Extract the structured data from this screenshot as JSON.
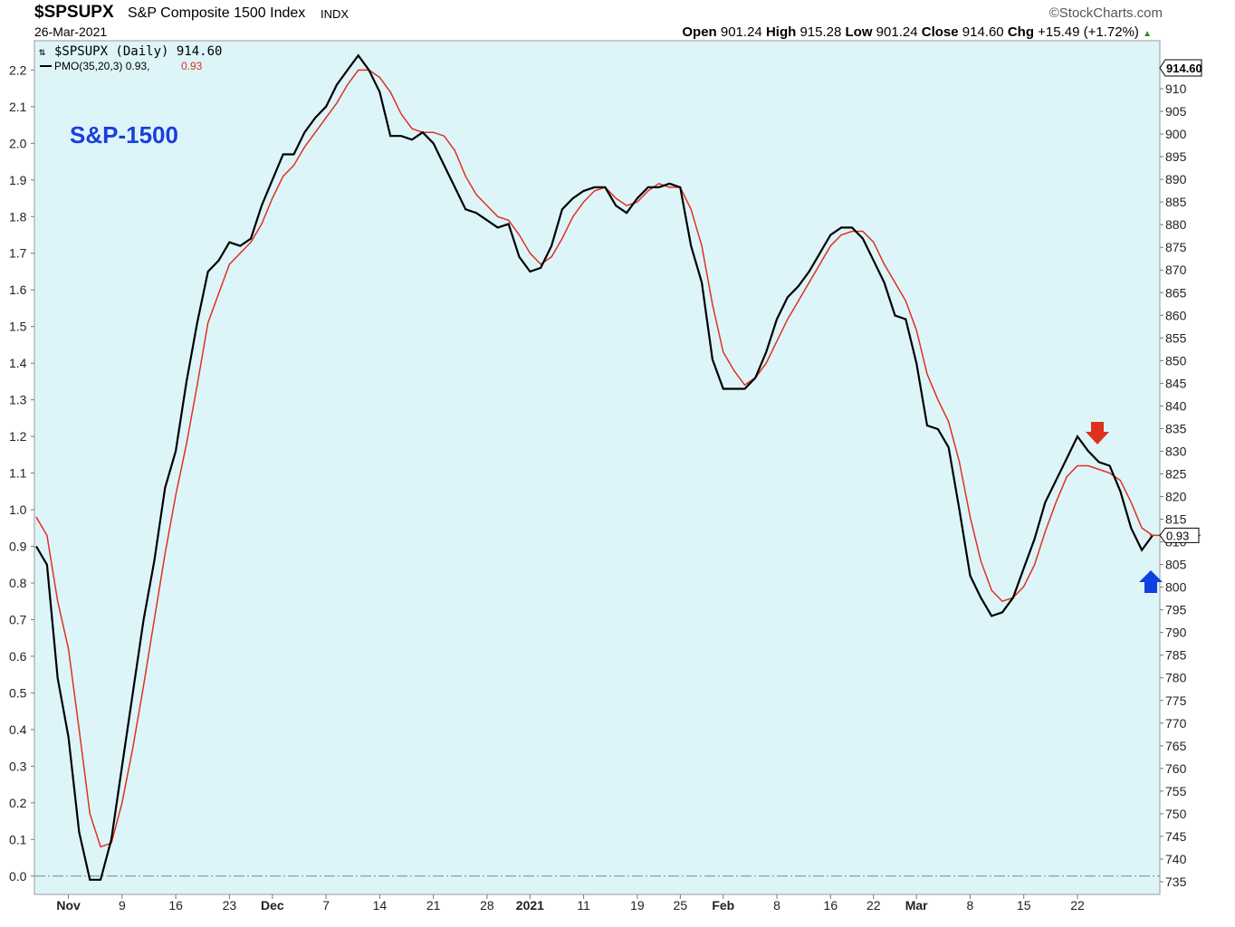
{
  "header": {
    "symbol": "$SPSUPX",
    "description": "S&P Composite 1500 Index",
    "exchange": "INDX",
    "date": "26-Mar-2021",
    "brand": "©StockCharts.com",
    "open_label": "Open",
    "open": "901.24",
    "high_label": "High",
    "high": "915.28",
    "low_label": "Low",
    "low": "901.24",
    "close_label": "Close",
    "close": "914.60",
    "chg_label": "Chg",
    "chg": "+15.49 (+1.72%)"
  },
  "legend": {
    "price": "$SPSUPX (Daily) 914.60",
    "pmo": "PMO(35,20,3) 0.93,",
    "signal": "0.93"
  },
  "annotation": "S&P-1500",
  "colors": {
    "background": "#ddf5f8",
    "pmo": "#000000",
    "signal": "#e03020",
    "annotation": "#1a3ee0",
    "down_arrow": "#e03020",
    "up_arrow": "#1040e0"
  },
  "chart_data": {
    "type": "line",
    "title": "",
    "x_tick_labels": [
      "Nov",
      "9",
      "16",
      "23",
      "Dec",
      "7",
      "14",
      "21",
      "28",
      "2021",
      "11",
      "19",
      "25",
      "Feb",
      "8",
      "16",
      "22",
      "Mar",
      "8",
      "15",
      "22"
    ],
    "left_axis": {
      "ticks": [
        "0.0",
        "0.1",
        "0.2",
        "0.3",
        "0.4",
        "0.5",
        "0.6",
        "0.7",
        "0.8",
        "0.9",
        "1.0",
        "1.1",
        "1.2",
        "1.3",
        "1.4",
        "1.5",
        "1.6",
        "1.7",
        "1.8",
        "1.9",
        "2.0",
        "2.1",
        "2.2"
      ],
      "ylim": [
        -0.05,
        2.28
      ]
    },
    "right_axis": {
      "ticks": [
        "735",
        "740",
        "745",
        "750",
        "755",
        "760",
        "765",
        "770",
        "775",
        "780",
        "785",
        "790",
        "795",
        "800",
        "805",
        "810",
        "815",
        "820",
        "825",
        "830",
        "835",
        "840",
        "845",
        "850",
        "855",
        "860",
        "865",
        "870",
        "875",
        "880",
        "885",
        "890",
        "895",
        "900",
        "905",
        "910"
      ],
      "last_value_label": "914.60",
      "last_value": 914.6
    },
    "pmo_value_label": "0.93",
    "zero_line": 0,
    "series": [
      {
        "name": "PMO(35,20,3)",
        "values": [
          0.9,
          0.85,
          0.54,
          0.38,
          0.12,
          -0.01,
          -0.01,
          0.1,
          0.3,
          0.5,
          0.7,
          0.86,
          1.06,
          1.16,
          1.35,
          1.51,
          1.65,
          1.68,
          1.73,
          1.72,
          1.74,
          1.83,
          1.9,
          1.97,
          1.97,
          2.03,
          2.07,
          2.1,
          2.16,
          2.2,
          2.24,
          2.2,
          2.14,
          2.02,
          2.02,
          2.01,
          2.03,
          2.0,
          1.94,
          1.88,
          1.82,
          1.81,
          1.79,
          1.77,
          1.78,
          1.69,
          1.65,
          1.66,
          1.72,
          1.82,
          1.85,
          1.87,
          1.88,
          1.88,
          1.83,
          1.81,
          1.85,
          1.88,
          1.88,
          1.89,
          1.88,
          1.72,
          1.62,
          1.41,
          1.33,
          1.33,
          1.33,
          1.36,
          1.43,
          1.52,
          1.58,
          1.61,
          1.65,
          1.7,
          1.75,
          1.77,
          1.77,
          1.74,
          1.68,
          1.62,
          1.53,
          1.52,
          1.4,
          1.23,
          1.22,
          1.17,
          1.0,
          0.82,
          0.76,
          0.71,
          0.72,
          0.76,
          0.84,
          0.92,
          1.02,
          1.08,
          1.14,
          1.2,
          1.16,
          1.13,
          1.12,
          1.05,
          0.95,
          0.89,
          0.93
        ]
      },
      {
        "name": "Signal",
        "values": [
          0.98,
          0.93,
          0.75,
          0.62,
          0.4,
          0.17,
          0.08,
          0.09,
          0.2,
          0.35,
          0.52,
          0.7,
          0.88,
          1.04,
          1.18,
          1.34,
          1.51,
          1.59,
          1.67,
          1.7,
          1.73,
          1.78,
          1.85,
          1.91,
          1.94,
          1.99,
          2.03,
          2.07,
          2.11,
          2.16,
          2.2,
          2.2,
          2.18,
          2.14,
          2.08,
          2.04,
          2.03,
          2.03,
          2.02,
          1.98,
          1.91,
          1.86,
          1.83,
          1.8,
          1.79,
          1.75,
          1.7,
          1.67,
          1.69,
          1.74,
          1.8,
          1.84,
          1.87,
          1.88,
          1.85,
          1.83,
          1.84,
          1.87,
          1.89,
          1.88,
          1.88,
          1.82,
          1.72,
          1.56,
          1.43,
          1.38,
          1.34,
          1.36,
          1.4,
          1.46,
          1.52,
          1.57,
          1.62,
          1.67,
          1.72,
          1.75,
          1.76,
          1.76,
          1.73,
          1.67,
          1.62,
          1.57,
          1.49,
          1.37,
          1.3,
          1.24,
          1.13,
          0.98,
          0.86,
          0.78,
          0.75,
          0.76,
          0.79,
          0.85,
          0.94,
          1.02,
          1.09,
          1.12,
          1.12,
          1.11,
          1.1,
          1.08,
          1.02,
          0.95,
          0.93
        ]
      }
    ]
  }
}
